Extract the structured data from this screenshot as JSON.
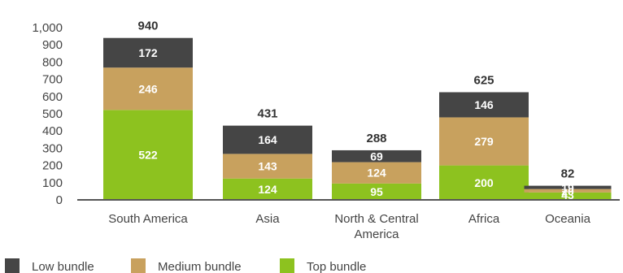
{
  "chart_data": {
    "type": "bar",
    "stacked": true,
    "categories": [
      "South America",
      "Asia",
      "North & Central America",
      "Africa",
      "Oceania"
    ],
    "series": [
      {
        "name": "Top bundle",
        "color": "#8dc21f",
        "values": [
          522,
          124,
          95,
          200,
          43
        ]
      },
      {
        "name": "Medium bundle",
        "color": "#c8a15e",
        "values": [
          246,
          143,
          124,
          279,
          20
        ]
      },
      {
        "name": "Low bundle",
        "color": "#454545",
        "values": [
          172,
          164,
          69,
          146,
          19
        ]
      }
    ],
    "totals": [
      940,
      431,
      288,
      625,
      82
    ],
    "ylim": [
      0,
      1000
    ],
    "yticks": [
      "0",
      "100",
      "200",
      "300",
      "400",
      "500",
      "600",
      "700",
      "800",
      "900",
      "1,000"
    ],
    "grid": false,
    "legend_position": "bottom-left",
    "title": "",
    "xlabel": "",
    "ylabel": ""
  }
}
